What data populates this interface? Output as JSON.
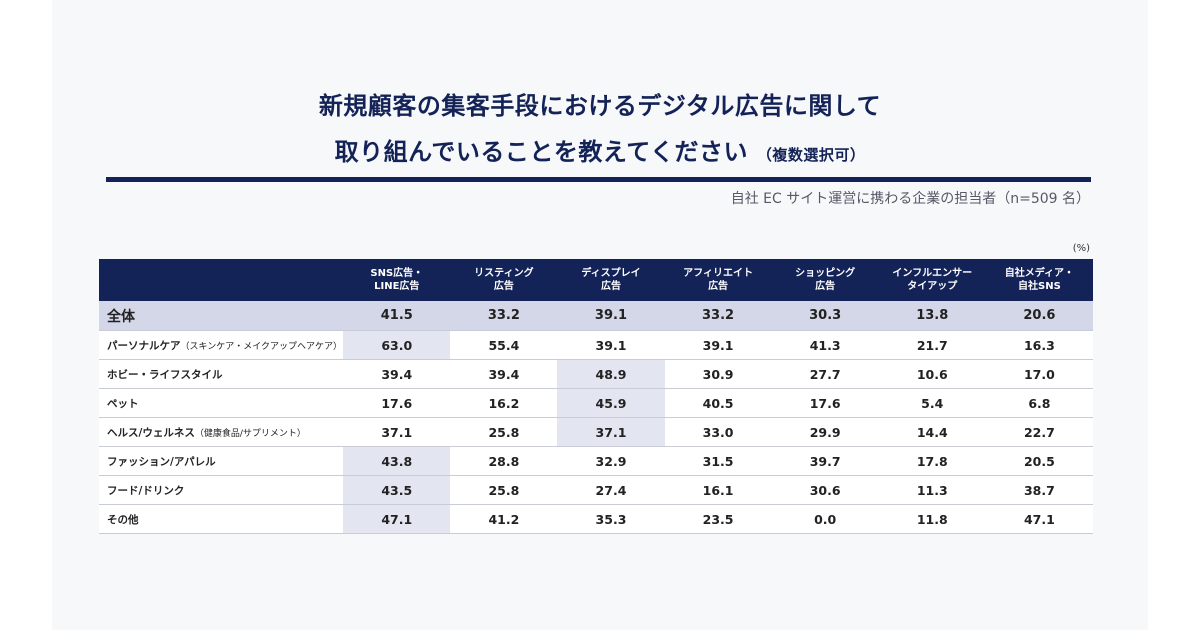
{
  "title": {
    "line1": "新規顧客の集客手段におけるデジタル広告に関して",
    "line2": "取り組んでいることを教えてください",
    "note": "（複数選択可）"
  },
  "subject": "自社 EC サイト運営に携わる企業の担当者（n=509 名）",
  "unit": "(%)",
  "colors": {
    "header_bg": "#142357",
    "overall_bg": "#d3d7e8",
    "highlight_bg": "#e3e6f1"
  },
  "chart_data": {
    "type": "table",
    "columns": [
      "SNS広告・\nLINE広告",
      "リスティング\n広告",
      "ディスプレイ\n広告",
      "アフィリエイト\n広告",
      "ショッピング\n広告",
      "インフルエンサー\nタイアップ",
      "自社メディア・\n自社SNS"
    ],
    "rows": [
      {
        "label": "全体",
        "sub": "",
        "values": [
          "41.5",
          "33.2",
          "39.1",
          "33.2",
          "30.3",
          "13.8",
          "20.6"
        ],
        "highlight": []
      },
      {
        "label": "パーソナルケア",
        "sub": "（スキンケア・メイクアップヘアケア）",
        "values": [
          "63.0",
          "55.4",
          "39.1",
          "39.1",
          "41.3",
          "21.7",
          "16.3"
        ],
        "highlight": [
          0
        ]
      },
      {
        "label": "ホビー・ライフスタイル",
        "sub": "",
        "values": [
          "39.4",
          "39.4",
          "48.9",
          "30.9",
          "27.7",
          "10.6",
          "17.0"
        ],
        "highlight": [
          2
        ]
      },
      {
        "label": "ペット",
        "sub": "",
        "values": [
          "17.6",
          "16.2",
          "45.9",
          "40.5",
          "17.6",
          "5.4",
          "6.8"
        ],
        "highlight": [
          2
        ]
      },
      {
        "label": "ヘルス/ウェルネス",
        "sub": "（健康食品/サプリメント）",
        "values": [
          "37.1",
          "25.8",
          "37.1",
          "33.0",
          "29.9",
          "14.4",
          "22.7"
        ],
        "highlight": [
          2
        ]
      },
      {
        "label": "ファッション/アパレル",
        "sub": "",
        "values": [
          "43.8",
          "28.8",
          "32.9",
          "31.5",
          "39.7",
          "17.8",
          "20.5"
        ],
        "highlight": [
          0
        ]
      },
      {
        "label": "フード/ドリンク",
        "sub": "",
        "values": [
          "43.5",
          "25.8",
          "27.4",
          "16.1",
          "30.6",
          "11.3",
          "38.7"
        ],
        "highlight": [
          0
        ]
      },
      {
        "label": "その他",
        "sub": "",
        "values": [
          "47.1",
          "41.2",
          "35.3",
          "23.5",
          "0.0",
          "11.8",
          "47.1"
        ],
        "highlight": [
          0
        ]
      }
    ]
  }
}
